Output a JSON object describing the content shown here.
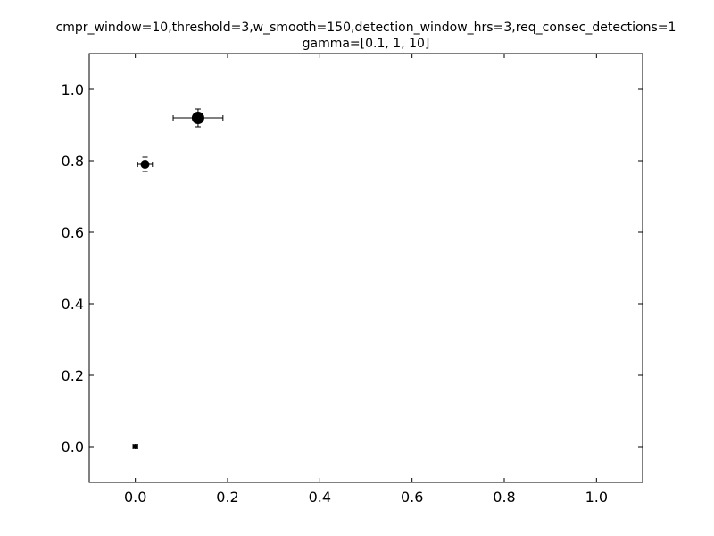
{
  "chart_data": {
    "type": "scatter",
    "title_line1": "cmpr_window=10,threshold=3,w_smooth=150,detection_window_hrs=3,req_consec_detections=1",
    "title_line2": "gamma=[0.1, 1, 10]",
    "xlabel": "",
    "ylabel": "",
    "xlim": [
      -0.1,
      1.1
    ],
    "ylim": [
      -0.1,
      1.1
    ],
    "xticks": [
      0.0,
      0.2,
      0.4,
      0.6,
      0.8,
      1.0
    ],
    "yticks": [
      0.0,
      0.2,
      0.4,
      0.6,
      0.8,
      1.0
    ],
    "xtick_labels": [
      "0.0",
      "0.2",
      "0.4",
      "0.6",
      "0.8",
      "1.0"
    ],
    "ytick_labels": [
      "0.0",
      "0.2",
      "0.4",
      "0.6",
      "0.8",
      "1.0"
    ],
    "grid": false,
    "color": "#000000",
    "points": [
      {
        "x": 0.0,
        "y": 0.0,
        "xerr": 0.005,
        "yerr": 0.005,
        "marker_size": 3
      },
      {
        "x": 0.021,
        "y": 0.79,
        "xerr": 0.016,
        "yerr": 0.02,
        "marker_size": 5
      },
      {
        "x": 0.136,
        "y": 0.92,
        "xerr": 0.054,
        "yerr": 0.025,
        "marker_size": 7
      }
    ]
  }
}
